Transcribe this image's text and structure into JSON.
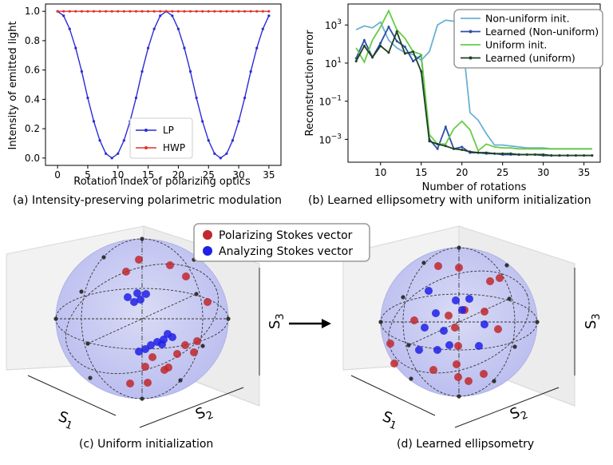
{
  "captions": {
    "a": "(a) Intensity-preserving polarimetric modulation",
    "b": "(b) Learned ellipsometry with uniform initialization",
    "c": "(c) Uniform initialization",
    "d": "(d) Learned ellipsometry"
  },
  "sphere_legend": {
    "polarizing": "Polarizing Stokes vector",
    "analyzing": "Analyzing Stokes vector",
    "polarizing_color": "#c0282d",
    "analyzing_color": "#2020e6"
  },
  "axis_labels": {
    "s1": "S",
    "s1_sub": "1",
    "s2": "S",
    "s2_sub": "2",
    "s3": "S",
    "s3_sub": "3"
  },
  "chart_data": [
    {
      "type": "line",
      "xlabel": "Rotation index of polarizing optics",
      "ylabel": "Intensity of emitted light",
      "xlim": [
        -2,
        37
      ],
      "ylim": [
        -0.05,
        1.05
      ],
      "xticks": [
        0,
        5,
        10,
        15,
        20,
        25,
        30,
        35
      ],
      "yticks": [
        0.0,
        0.2,
        0.4,
        0.6,
        0.8,
        1.0
      ],
      "ytick_labels": [
        "0.0",
        "0.2",
        "0.4",
        "0.6",
        "0.8",
        "1.0"
      ],
      "legend_position": "lower-center",
      "x": [
        0,
        1,
        2,
        3,
        4,
        5,
        6,
        7,
        8,
        9,
        10,
        11,
        12,
        13,
        14,
        15,
        16,
        17,
        18,
        19,
        20,
        21,
        22,
        23,
        24,
        25,
        26,
        27,
        28,
        29,
        30,
        31,
        32,
        33,
        34,
        35
      ],
      "series": [
        {
          "name": "LP",
          "color": "#2b2bd6",
          "values": [
            1.0,
            0.97,
            0.88,
            0.75,
            0.59,
            0.41,
            0.25,
            0.12,
            0.03,
            0.0,
            0.03,
            0.12,
            0.25,
            0.41,
            0.59,
            0.75,
            0.88,
            0.97,
            1.0,
            0.97,
            0.88,
            0.75,
            0.59,
            0.41,
            0.25,
            0.12,
            0.03,
            0.0,
            0.03,
            0.12,
            0.25,
            0.41,
            0.59,
            0.75,
            0.88,
            0.97
          ]
        },
        {
          "name": "HWP",
          "color": "#e0332b",
          "values": [
            1,
            1,
            1,
            1,
            1,
            1,
            1,
            1,
            1,
            1,
            1,
            1,
            1,
            1,
            1,
            1,
            1,
            1,
            1,
            1,
            1,
            1,
            1,
            1,
            1,
            1,
            1,
            1,
            1,
            1,
            1,
            1,
            1,
            1,
            1,
            1
          ]
        }
      ]
    },
    {
      "type": "line",
      "xlabel": "Number of rotations",
      "ylabel": "Reconstruction error",
      "yscale": "log",
      "xlim": [
        6,
        37
      ],
      "ylim_log10": [
        -4.2,
        4.1
      ],
      "xticks": [
        10,
        15,
        20,
        25,
        30,
        35
      ],
      "yticks_log10": [
        -3,
        -1,
        1,
        3
      ],
      "ytick_labels": [
        {
          "base": "10",
          "exp": "−3"
        },
        {
          "base": "10",
          "exp": "−1"
        },
        {
          "base": "10",
          "exp": "1"
        },
        {
          "base": "10",
          "exp": "3"
        }
      ],
      "legend_position": "top-right",
      "x": [
        7,
        8,
        9,
        10,
        11,
        12,
        13,
        14,
        15,
        16,
        17,
        18,
        19,
        20,
        21,
        22,
        23,
        24,
        25,
        26,
        27,
        28,
        29,
        30,
        31,
        32,
        33,
        34,
        35,
        36
      ],
      "series": [
        {
          "name": "Non-uniform init.",
          "color": "#6ab0d4",
          "values_log10": [
            2.75,
            2.95,
            2.85,
            3.15,
            2.2,
            1.8,
            1.55,
            1.45,
            1.15,
            1.6,
            3.0,
            3.25,
            3.2,
            2.5,
            -1.6,
            -2.0,
            -2.7,
            -3.3,
            -3.3,
            -3.35,
            -3.4,
            -3.45,
            -3.45,
            -3.45,
            -3.5,
            -3.5,
            -3.5,
            -3.5,
            -3.5,
            -3.5
          ]
        },
        {
          "name": "Learned (Non-uniform)",
          "color": "#2a50a5",
          "values_log10": [
            1.25,
            2.2,
            1.3,
            2.05,
            2.9,
            2.15,
            1.85,
            1.1,
            1.4,
            -3.0,
            -3.5,
            -2.35,
            -3.5,
            -3.4,
            -3.7,
            -3.7,
            -3.75,
            -3.75,
            -3.8,
            -3.8,
            -3.8,
            -3.8,
            -3.8,
            -3.85,
            -3.85,
            -3.85,
            -3.85,
            -3.85,
            -3.85,
            -3.85
          ]
        },
        {
          "name": "Uniform init.",
          "color": "#66cc44",
          "values_log10": [
            1.8,
            1.05,
            2.2,
            2.9,
            3.75,
            2.75,
            2.3,
            1.6,
            1.45,
            -2.75,
            -3.25,
            -3.25,
            -2.45,
            -2.05,
            -2.5,
            -3.6,
            -3.25,
            -3.4,
            -3.45,
            -3.45,
            -3.5,
            -3.5,
            -3.5,
            -3.5,
            -3.5,
            -3.5,
            -3.5,
            -3.5,
            -3.5,
            -3.5
          ]
        },
        {
          "name": "Learned (uniform)",
          "color": "#1e4022",
          "values_log10": [
            1.1,
            1.9,
            1.3,
            1.9,
            1.55,
            2.65,
            1.5,
            1.6,
            0.55,
            -3.1,
            -3.25,
            -3.35,
            -3.5,
            -3.55,
            -3.65,
            -3.7,
            -3.7,
            -3.75,
            -3.75,
            -3.75,
            -3.8,
            -3.8,
            -3.8,
            -3.8,
            -3.85,
            -3.85,
            -3.85,
            -3.85,
            -3.85,
            -3.85
          ]
        }
      ]
    }
  ]
}
